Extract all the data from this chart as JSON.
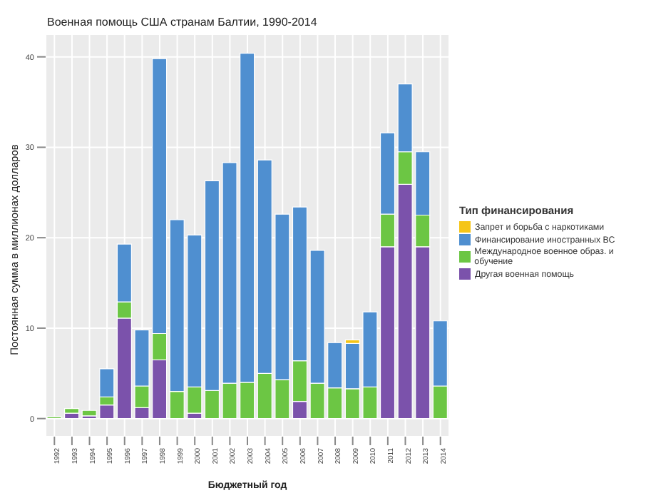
{
  "chart_data": {
    "type": "bar",
    "stacked": true,
    "title": "Военная помощь США странам Балтии, 1990-2014",
    "xlabel": "Бюджетный год",
    "ylabel": "Постоянная сумма в миллионах долларов",
    "legend_title": "Тип финансирования",
    "legend": "right",
    "grid": true,
    "categories": [
      "1992",
      "1993",
      "1994",
      "1995",
      "1996",
      "1997",
      "1998",
      "1999",
      "2000",
      "2001",
      "2002",
      "2003",
      "2004",
      "2005",
      "2006",
      "2007",
      "2008",
      "2009",
      "2010",
      "2011",
      "2012",
      "2013",
      "2014"
    ],
    "ylim": [
      -2,
      42.5
    ],
    "yticks": [
      0,
      10,
      20,
      30,
      40
    ],
    "series": [
      {
        "name": "Другая военная помощь",
        "color": "#7b52ab",
        "values": [
          null,
          0.6,
          0.3,
          1.5,
          11.1,
          1.2,
          6.5,
          null,
          0.6,
          null,
          null,
          null,
          null,
          null,
          1.9,
          null,
          null,
          null,
          null,
          19.0,
          25.9,
          19.0,
          null
        ]
      },
      {
        "name": "Международное военное образ. и обучение",
        "color": "#6cc644",
        "values": [
          0.2,
          0.5,
          0.6,
          0.9,
          1.8,
          2.4,
          2.9,
          3.0,
          2.9,
          3.1,
          3.9,
          4.0,
          5.0,
          4.3,
          4.5,
          3.9,
          3.4,
          3.3,
          3.5,
          3.6,
          3.6,
          3.5,
          3.6
        ]
      },
      {
        "name": "Финансирование иностранных ВС",
        "color": "#4f8fd0",
        "values": [
          null,
          null,
          null,
          3.1,
          6.4,
          6.2,
          30.4,
          19.0,
          16.8,
          23.2,
          24.4,
          36.4,
          23.6,
          18.3,
          17.0,
          14.7,
          5.0,
          5.0,
          8.3,
          9.0,
          7.5,
          7.0,
          7.2
        ]
      },
      {
        "name": "Запрет и борьба с наркотиками",
        "color": "#f5c518",
        "values": [
          null,
          null,
          null,
          null,
          null,
          null,
          null,
          null,
          null,
          null,
          null,
          null,
          null,
          null,
          null,
          null,
          null,
          0.4,
          null,
          null,
          null,
          null,
          null
        ]
      }
    ]
  }
}
